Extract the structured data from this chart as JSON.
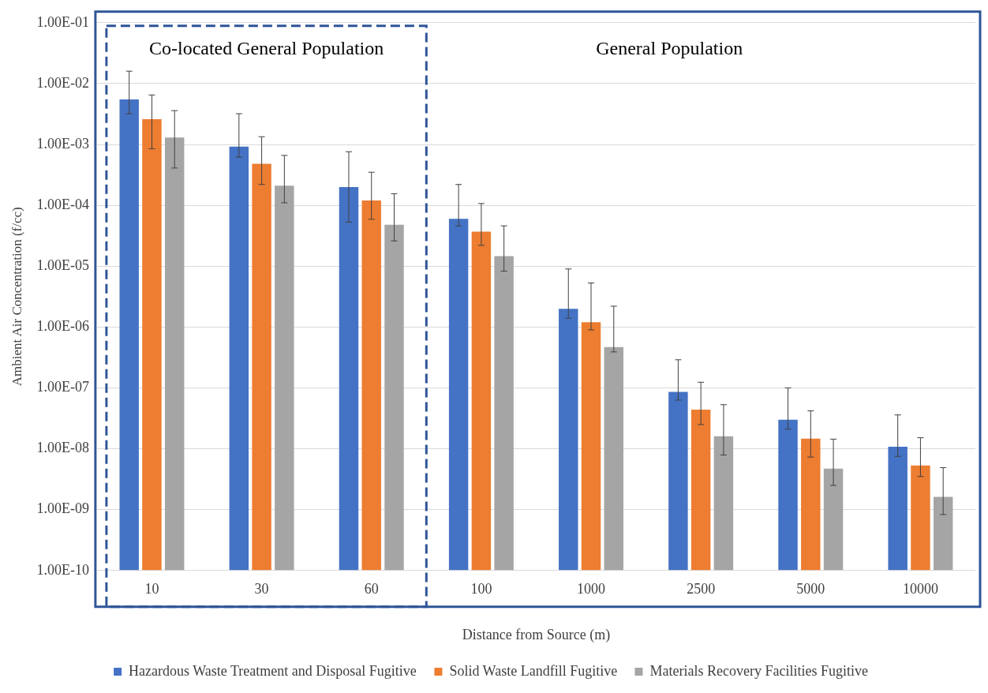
{
  "chart_data": {
    "type": "bar",
    "xlabel": "Distance from Source (m)",
    "ylabel": "Ambient Air Concentration (f/cc)",
    "categories": [
      "10",
      "30",
      "60",
      "100",
      "1000",
      "2500",
      "5000",
      "10000"
    ],
    "series": [
      {
        "name": "Hazardous Waste Treatment and Disposal Fugitive",
        "color": "#4472c4",
        "values": [
          0.0055,
          0.00092,
          0.0002,
          6e-05,
          2e-06,
          8.6e-08,
          3e-08,
          1.08e-08
        ],
        "errors": [
          [
            0.0032,
            0.016
          ],
          [
            0.00062,
            0.0032
          ],
          [
            5.3e-05,
            0.00076
          ],
          [
            4.6e-05,
            0.00022
          ],
          [
            1.4e-06,
            9e-06
          ],
          [
            6.3e-08,
            2.9e-07
          ],
          [
            2.1e-08,
            1e-07
          ],
          [
            7.5e-09,
            3.6e-08
          ]
        ]
      },
      {
        "name": "Solid Waste Landfill Fugitive",
        "color": "#ed7d31",
        "values": [
          0.0026,
          0.00048,
          0.00012,
          3.7e-05,
          1.2e-06,
          4.4e-08,
          1.47e-08,
          5.3e-09
        ],
        "errors": [
          [
            0.00085,
            0.0065
          ],
          [
            0.00022,
            0.00134
          ],
          [
            5.9e-05,
            0.00035
          ],
          [
            2.2e-05,
            0.000107
          ],
          [
            9e-07,
            5.3e-06
          ],
          [
            2.5e-08,
            1.24e-07
          ],
          [
            7.3e-09,
            4.2e-08
          ],
          [
            3.5e-09,
            1.52e-08
          ]
        ]
      },
      {
        "name": "Materials Recovery Facilities Fugitive",
        "color": "#a5a5a5",
        "values": [
          0.0013,
          0.00021,
          4.8e-05,
          1.46e-05,
          4.7e-07,
          1.6e-08,
          4.7e-09,
          1.62e-09
        ],
        "errors": [
          [
            0.00041,
            0.0036
          ],
          [
            0.00011,
            0.00066
          ],
          [
            2.6e-05,
            0.000155
          ],
          [
            8.3e-06,
            4.6e-05
          ],
          [
            3.9e-07,
            2.2e-06
          ],
          [
            7.9e-09,
            5.3e-08
          ],
          [
            2.5e-09,
            1.44e-08
          ],
          [
            8.3e-10,
            4.9e-09
          ]
        ]
      }
    ],
    "log": "y",
    "ylim": [
      1e-10,
      0.1
    ],
    "yticks": [
      {
        "value": 1e-10,
        "label": "1.00E-10"
      },
      {
        "value": 1e-09,
        "label": "1.00E-09"
      },
      {
        "value": 1e-08,
        "label": "1.00E-08"
      },
      {
        "value": 1e-07,
        "label": "1.00E-07"
      },
      {
        "value": 1e-06,
        "label": "1.00E-06"
      },
      {
        "value": 1e-05,
        "label": "1.00E-05"
      },
      {
        "value": 0.0001,
        "label": "1.00E-04"
      },
      {
        "value": 0.001,
        "label": "1.00E-03"
      },
      {
        "value": 0.01,
        "label": "1.00E-02"
      },
      {
        "value": 0.1,
        "label": "1.00E-01"
      }
    ],
    "annotations": [
      "Co-located General Population",
      "General Population"
    ],
    "grid": "y",
    "legend": "bottom"
  }
}
